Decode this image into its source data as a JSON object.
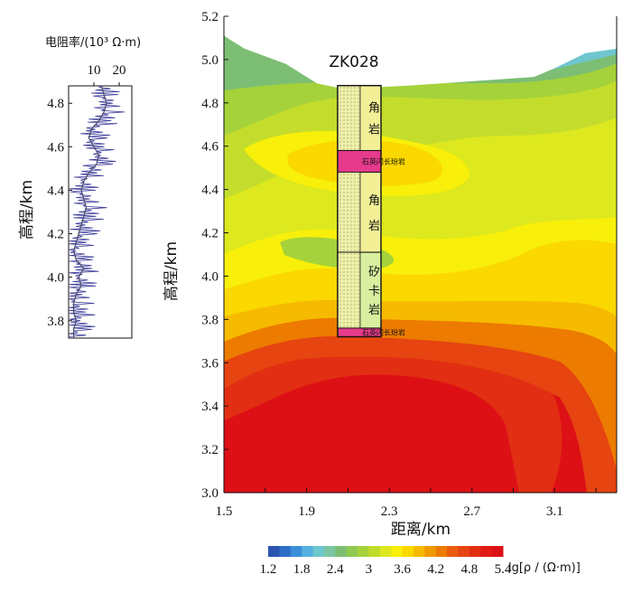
{
  "chart_data": [
    {
      "type": "line",
      "title": "",
      "top_label": "电阻率/(10³ Ω·m)",
      "ylabel": "高程/km",
      "xlim": [
        0,
        25
      ],
      "ylim": [
        3.72,
        4.88
      ],
      "x_ticks": [
        10,
        20
      ],
      "y_ticks": [
        3.8,
        4.0,
        4.2,
        4.4,
        4.6,
        4.8
      ],
      "series": [
        {
          "elevation": [
            4.88,
            4.84,
            4.8,
            4.76,
            4.72,
            4.68,
            4.64,
            4.6,
            4.56,
            4.52,
            4.48,
            4.44,
            4.4,
            4.36,
            4.32,
            4.28,
            4.24,
            4.2,
            4.16,
            4.12,
            4.08,
            4.04,
            4.0,
            3.96,
            3.92,
            3.88,
            3.84,
            3.8,
            3.76,
            3.72
          ],
          "resistivity": [
            13,
            14,
            15,
            14,
            12,
            9,
            8,
            10,
            12,
            11,
            8,
            6,
            5,
            6,
            7,
            6,
            5,
            4,
            3,
            2,
            3,
            6,
            4,
            5,
            3,
            2,
            2,
            3,
            2,
            2
          ]
        }
      ]
    },
    {
      "type": "heatmap",
      "title": "ZK028",
      "xlabel": "距离/km",
      "ylabel": "高程/km",
      "xlim": [
        1.5,
        3.4
      ],
      "ylim": [
        3.0,
        5.2
      ],
      "x_ticks": [
        1.5,
        1.9,
        2.3,
        2.7,
        3.1
      ],
      "y_ticks": [
        3.0,
        3.2,
        3.4,
        3.6,
        3.8,
        4.0,
        4.2,
        4.4,
        4.6,
        4.8,
        5.0,
        5.2
      ],
      "surface": {
        "x": [
          1.5,
          1.6,
          1.8,
          1.95,
          2.05,
          2.2,
          2.4,
          2.7,
          3.0,
          3.1,
          3.25,
          3.4
        ],
        "z": [
          5.11,
          5.05,
          4.98,
          4.89,
          4.87,
          4.87,
          4.88,
          4.9,
          4.92,
          4.96,
          5.03,
          5.05
        ]
      },
      "borehole": {
        "name": "ZK028",
        "x": [
          2.05,
          2.26
        ],
        "top": 4.88,
        "bottom": 3.72,
        "layers": [
          {
            "name": "角岩",
            "top": 4.88,
            "bottom": 4.58,
            "color": "#f2ef96"
          },
          {
            "name": "石英闪长玢岩",
            "top": 4.58,
            "bottom": 4.48,
            "color": "#e63a8c"
          },
          {
            "name": "角岩",
            "top": 4.48,
            "bottom": 4.11,
            "color": "#f2ef96"
          },
          {
            "name": "矽卡岩",
            "top": 4.11,
            "bottom": 3.76,
            "color": "#d8ef9e"
          },
          {
            "name": "石英闪长玢岩",
            "top": 3.76,
            "bottom": 3.72,
            "color": "#e63a8c"
          }
        ]
      },
      "colorbar": {
        "label": "lg[ρ / (Ω·m)]",
        "min": 1.2,
        "max": 5.4,
        "ticks": [
          1.2,
          1.8,
          2.4,
          3,
          3.6,
          4.2,
          4.8,
          5.4
        ],
        "colors": [
          "#2c55b0",
          "#2d6fc6",
          "#3a8fd8",
          "#54b0e0",
          "#6fc6cf",
          "#7cc5a2",
          "#7cbe73",
          "#8fc950",
          "#a5d23a",
          "#bfdc2a",
          "#dde81e",
          "#f8ef0a",
          "#fbd800",
          "#f6bb00",
          "#f09a00",
          "#ec7b00",
          "#e95c0d",
          "#e64410",
          "#e22e12",
          "#df1b14",
          "#dd1015"
        ]
      },
      "contour_bands": [
        {
          "value": 2.7,
          "label": "green band"
        },
        {
          "value": 3.3,
          "label": "yellow-green"
        },
        {
          "value": 3.6,
          "label": "yellow"
        },
        {
          "value": 3.9,
          "label": "gold"
        },
        {
          "value": 4.2,
          "label": "orange"
        },
        {
          "value": 4.5,
          "label": "red-orange"
        },
        {
          "value": 4.8,
          "label": "red"
        }
      ]
    }
  ],
  "ui": {
    "log_top_label": "电阻率/(10³ Ω·m)",
    "log_ylabel": "高程/km",
    "main_ylabel": "高程/km",
    "main_xlabel": "距离/km",
    "borehole_label": "ZK028",
    "colorbar_label": "lg[ρ / (Ω·m)]"
  }
}
